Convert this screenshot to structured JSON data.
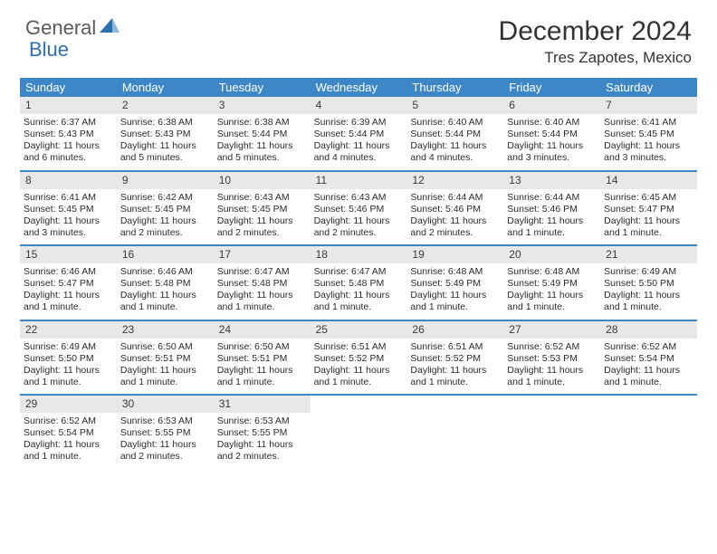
{
  "logo": {
    "part1": "General",
    "part2": "Blue"
  },
  "title": "December 2024",
  "location": "Tres Zapotes, Mexico",
  "styling": {
    "header_bg": "#3d87c7",
    "header_text": "#ffffff",
    "daynum_bg": "#e8e8e8",
    "border_color": "#3d87c7",
    "body_text": "#2b2b2b",
    "logo_gray": "#5a5a5a",
    "logo_blue": "#2f6fb0",
    "page_bg": "#ffffff",
    "title_fontsize": 30,
    "location_fontsize": 17,
    "dayheader_fontsize": 13,
    "cell_fontsize": 10.5,
    "columns": 7
  },
  "day_names": [
    "Sunday",
    "Monday",
    "Tuesday",
    "Wednesday",
    "Thursday",
    "Friday",
    "Saturday"
  ],
  "weeks": [
    [
      {
        "n": "1",
        "sr": "Sunrise: 6:37 AM",
        "ss": "Sunset: 5:43 PM",
        "d1": "Daylight: 11 hours",
        "d2": "and 6 minutes."
      },
      {
        "n": "2",
        "sr": "Sunrise: 6:38 AM",
        "ss": "Sunset: 5:43 PM",
        "d1": "Daylight: 11 hours",
        "d2": "and 5 minutes."
      },
      {
        "n": "3",
        "sr": "Sunrise: 6:38 AM",
        "ss": "Sunset: 5:44 PM",
        "d1": "Daylight: 11 hours",
        "d2": "and 5 minutes."
      },
      {
        "n": "4",
        "sr": "Sunrise: 6:39 AM",
        "ss": "Sunset: 5:44 PM",
        "d1": "Daylight: 11 hours",
        "d2": "and 4 minutes."
      },
      {
        "n": "5",
        "sr": "Sunrise: 6:40 AM",
        "ss": "Sunset: 5:44 PM",
        "d1": "Daylight: 11 hours",
        "d2": "and 4 minutes."
      },
      {
        "n": "6",
        "sr": "Sunrise: 6:40 AM",
        "ss": "Sunset: 5:44 PM",
        "d1": "Daylight: 11 hours",
        "d2": "and 3 minutes."
      },
      {
        "n": "7",
        "sr": "Sunrise: 6:41 AM",
        "ss": "Sunset: 5:45 PM",
        "d1": "Daylight: 11 hours",
        "d2": "and 3 minutes."
      }
    ],
    [
      {
        "n": "8",
        "sr": "Sunrise: 6:41 AM",
        "ss": "Sunset: 5:45 PM",
        "d1": "Daylight: 11 hours",
        "d2": "and 3 minutes."
      },
      {
        "n": "9",
        "sr": "Sunrise: 6:42 AM",
        "ss": "Sunset: 5:45 PM",
        "d1": "Daylight: 11 hours",
        "d2": "and 2 minutes."
      },
      {
        "n": "10",
        "sr": "Sunrise: 6:43 AM",
        "ss": "Sunset: 5:45 PM",
        "d1": "Daylight: 11 hours",
        "d2": "and 2 minutes."
      },
      {
        "n": "11",
        "sr": "Sunrise: 6:43 AM",
        "ss": "Sunset: 5:46 PM",
        "d1": "Daylight: 11 hours",
        "d2": "and 2 minutes."
      },
      {
        "n": "12",
        "sr": "Sunrise: 6:44 AM",
        "ss": "Sunset: 5:46 PM",
        "d1": "Daylight: 11 hours",
        "d2": "and 2 minutes."
      },
      {
        "n": "13",
        "sr": "Sunrise: 6:44 AM",
        "ss": "Sunset: 5:46 PM",
        "d1": "Daylight: 11 hours",
        "d2": "and 1 minute."
      },
      {
        "n": "14",
        "sr": "Sunrise: 6:45 AM",
        "ss": "Sunset: 5:47 PM",
        "d1": "Daylight: 11 hours",
        "d2": "and 1 minute."
      }
    ],
    [
      {
        "n": "15",
        "sr": "Sunrise: 6:46 AM",
        "ss": "Sunset: 5:47 PM",
        "d1": "Daylight: 11 hours",
        "d2": "and 1 minute."
      },
      {
        "n": "16",
        "sr": "Sunrise: 6:46 AM",
        "ss": "Sunset: 5:48 PM",
        "d1": "Daylight: 11 hours",
        "d2": "and 1 minute."
      },
      {
        "n": "17",
        "sr": "Sunrise: 6:47 AM",
        "ss": "Sunset: 5:48 PM",
        "d1": "Daylight: 11 hours",
        "d2": "and 1 minute."
      },
      {
        "n": "18",
        "sr": "Sunrise: 6:47 AM",
        "ss": "Sunset: 5:48 PM",
        "d1": "Daylight: 11 hours",
        "d2": "and 1 minute."
      },
      {
        "n": "19",
        "sr": "Sunrise: 6:48 AM",
        "ss": "Sunset: 5:49 PM",
        "d1": "Daylight: 11 hours",
        "d2": "and 1 minute."
      },
      {
        "n": "20",
        "sr": "Sunrise: 6:48 AM",
        "ss": "Sunset: 5:49 PM",
        "d1": "Daylight: 11 hours",
        "d2": "and 1 minute."
      },
      {
        "n": "21",
        "sr": "Sunrise: 6:49 AM",
        "ss": "Sunset: 5:50 PM",
        "d1": "Daylight: 11 hours",
        "d2": "and 1 minute."
      }
    ],
    [
      {
        "n": "22",
        "sr": "Sunrise: 6:49 AM",
        "ss": "Sunset: 5:50 PM",
        "d1": "Daylight: 11 hours",
        "d2": "and 1 minute."
      },
      {
        "n": "23",
        "sr": "Sunrise: 6:50 AM",
        "ss": "Sunset: 5:51 PM",
        "d1": "Daylight: 11 hours",
        "d2": "and 1 minute."
      },
      {
        "n": "24",
        "sr": "Sunrise: 6:50 AM",
        "ss": "Sunset: 5:51 PM",
        "d1": "Daylight: 11 hours",
        "d2": "and 1 minute."
      },
      {
        "n": "25",
        "sr": "Sunrise: 6:51 AM",
        "ss": "Sunset: 5:52 PM",
        "d1": "Daylight: 11 hours",
        "d2": "and 1 minute."
      },
      {
        "n": "26",
        "sr": "Sunrise: 6:51 AM",
        "ss": "Sunset: 5:52 PM",
        "d1": "Daylight: 11 hours",
        "d2": "and 1 minute."
      },
      {
        "n": "27",
        "sr": "Sunrise: 6:52 AM",
        "ss": "Sunset: 5:53 PM",
        "d1": "Daylight: 11 hours",
        "d2": "and 1 minute."
      },
      {
        "n": "28",
        "sr": "Sunrise: 6:52 AM",
        "ss": "Sunset: 5:54 PM",
        "d1": "Daylight: 11 hours",
        "d2": "and 1 minute."
      }
    ],
    [
      {
        "n": "29",
        "sr": "Sunrise: 6:52 AM",
        "ss": "Sunset: 5:54 PM",
        "d1": "Daylight: 11 hours",
        "d2": "and 1 minute."
      },
      {
        "n": "30",
        "sr": "Sunrise: 6:53 AM",
        "ss": "Sunset: 5:55 PM",
        "d1": "Daylight: 11 hours",
        "d2": "and 2 minutes."
      },
      {
        "n": "31",
        "sr": "Sunrise: 6:53 AM",
        "ss": "Sunset: 5:55 PM",
        "d1": "Daylight: 11 hours",
        "d2": "and 2 minutes."
      },
      {
        "n": "",
        "sr": "",
        "ss": "",
        "d1": "",
        "d2": ""
      },
      {
        "n": "",
        "sr": "",
        "ss": "",
        "d1": "",
        "d2": ""
      },
      {
        "n": "",
        "sr": "",
        "ss": "",
        "d1": "",
        "d2": ""
      },
      {
        "n": "",
        "sr": "",
        "ss": "",
        "d1": "",
        "d2": ""
      }
    ]
  ]
}
